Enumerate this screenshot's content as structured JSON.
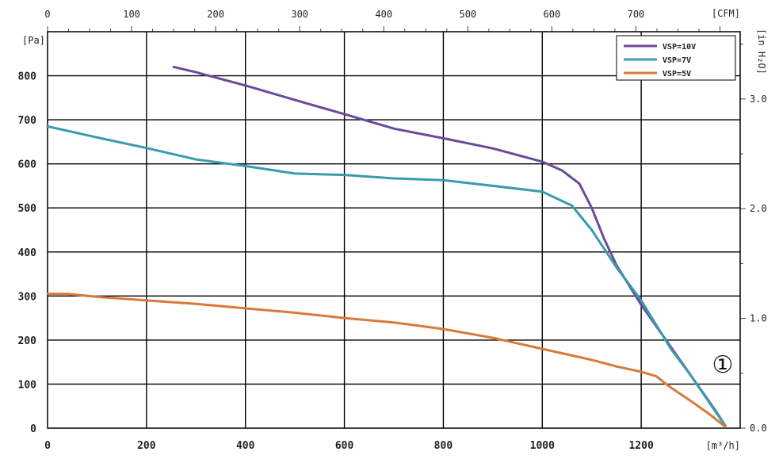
{
  "chart_data": {
    "type": "line",
    "title": "",
    "x_unit_bottom": "[m³/h]",
    "x_unit_top": "[CFM]",
    "y_unit_left": "[Pa]",
    "y_unit_right": "[in H₂O]",
    "xlim": [
      0,
      1400
    ],
    "ylim": [
      0,
      900
    ],
    "x_ticks_bottom": [
      0,
      200,
      400,
      600,
      800,
      1000,
      1200
    ],
    "y_ticks_left": [
      0,
      100,
      200,
      300,
      400,
      500,
      600,
      700,
      800
    ],
    "x_ticks_top": [
      {
        "value": 0,
        "label": "0"
      },
      {
        "value": 100,
        "label": "100"
      },
      {
        "value": 200,
        "label": "200"
      },
      {
        "value": 300,
        "label": "300"
      },
      {
        "value": 400,
        "label": "400"
      },
      {
        "value": 500,
        "label": "500"
      },
      {
        "value": 600,
        "label": "600"
      },
      {
        "value": 700,
        "label": "700"
      }
    ],
    "y_ticks_right": [
      {
        "value": 0,
        "label": "0.0"
      },
      {
        "value": 1,
        "label": "1.0"
      },
      {
        "value": 2,
        "label": "2.0"
      },
      {
        "value": 3,
        "label": "3.0"
      }
    ],
    "grid": true,
    "legend_position": "top-right",
    "series": [
      {
        "name": "VSP=10V",
        "color": "#6a4a9a",
        "points": [
          [
            255,
            820
          ],
          [
            300,
            808
          ],
          [
            400,
            778
          ],
          [
            500,
            745
          ],
          [
            600,
            713
          ],
          [
            700,
            680
          ],
          [
            800,
            658
          ],
          [
            900,
            635
          ],
          [
            1000,
            605
          ],
          [
            1040,
            585
          ],
          [
            1075,
            555
          ],
          [
            1100,
            500
          ],
          [
            1125,
            430
          ],
          [
            1150,
            370
          ],
          [
            1200,
            280
          ],
          [
            1250,
            200
          ],
          [
            1300,
            120
          ],
          [
            1350,
            40
          ],
          [
            1370,
            5
          ]
        ]
      },
      {
        "name": "VSP=7V",
        "color": "#3a9aae",
        "points": [
          [
            0,
            685
          ],
          [
            100,
            660
          ],
          [
            200,
            636
          ],
          [
            300,
            610
          ],
          [
            400,
            595
          ],
          [
            500,
            578
          ],
          [
            600,
            575
          ],
          [
            700,
            567
          ],
          [
            800,
            563
          ],
          [
            900,
            550
          ],
          [
            1000,
            537
          ],
          [
            1060,
            505
          ],
          [
            1100,
            450
          ],
          [
            1150,
            365
          ],
          [
            1200,
            290
          ],
          [
            1260,
            180
          ],
          [
            1300,
            120
          ],
          [
            1370,
            5
          ]
        ]
      },
      {
        "name": "VSP=5V",
        "color": "#d9793a",
        "points": [
          [
            0,
            305
          ],
          [
            40,
            305
          ],
          [
            100,
            298
          ],
          [
            200,
            290
          ],
          [
            300,
            282
          ],
          [
            400,
            272
          ],
          [
            500,
            262
          ],
          [
            600,
            250
          ],
          [
            700,
            240
          ],
          [
            800,
            225
          ],
          [
            900,
            205
          ],
          [
            1000,
            180
          ],
          [
            1100,
            155
          ],
          [
            1150,
            140
          ],
          [
            1200,
            128
          ],
          [
            1230,
            118
          ],
          [
            1260,
            92
          ],
          [
            1300,
            62
          ],
          [
            1340,
            30
          ],
          [
            1370,
            3
          ]
        ]
      }
    ],
    "annotation": "①"
  }
}
